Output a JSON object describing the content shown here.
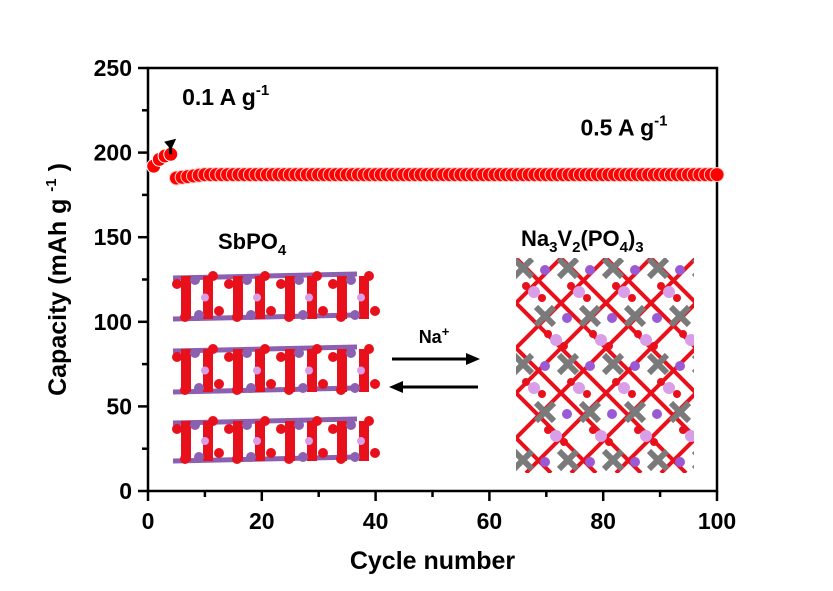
{
  "chart_data": {
    "type": "scatter",
    "title": "",
    "xlabel": "Cycle number",
    "ylabel": "Capacity (mAh g",
    "ylabel_superscript": "-1",
    "ylabel_close": ")",
    "xlim": [
      0,
      100
    ],
    "ylim": [
      0,
      250
    ],
    "xticks": [
      0,
      20,
      40,
      60,
      80,
      100
    ],
    "yticks": [
      0,
      50,
      100,
      150,
      200,
      250
    ],
    "x_minor_step": 10,
    "y_minor_step": 25,
    "grid": false,
    "marker_color": "#ff0000",
    "series": [
      {
        "name": "0.1 A g-1",
        "x": [
          1,
          2,
          3,
          4
        ],
        "y": [
          192,
          196,
          198,
          199
        ]
      },
      {
        "name": "0.5 A g-1",
        "x_start": 5,
        "x_end": 100,
        "y_start": 185,
        "y_end": 187,
        "typical_value": 187
      }
    ],
    "annotations": [
      {
        "id": "low-rate",
        "text": "0.1 A g",
        "sup": "-1",
        "x": 6,
        "y": 228,
        "arrow_from": [
          6,
          207
        ],
        "arrow_to": [
          4,
          199
        ]
      },
      {
        "id": "high-rate",
        "text": "0.5 A g",
        "sup": "-1",
        "x": 76,
        "y": 210
      }
    ],
    "insets": {
      "left_label_main": "SbPO",
      "left_label_sub": "4",
      "right_label": [
        {
          "t": "Na",
          "s": false
        },
        {
          "t": "3",
          "s": true
        },
        {
          "t": "V",
          "s": false
        },
        {
          "t": "2",
          "s": true
        },
        {
          "t": "(PO",
          "s": false
        },
        {
          "t": "4",
          "s": true
        },
        {
          "t": ")",
          "s": false
        },
        {
          "t": "3",
          "s": true
        }
      ],
      "reaction_label": "Na",
      "reaction_sup": "+",
      "colors": {
        "oxygen": "#e8101a",
        "antimony": "#8b60b0",
        "phosphorus": "#d99ee8",
        "vanadium": "#7a7a7a",
        "sodium": "#9a5ad6"
      }
    }
  }
}
